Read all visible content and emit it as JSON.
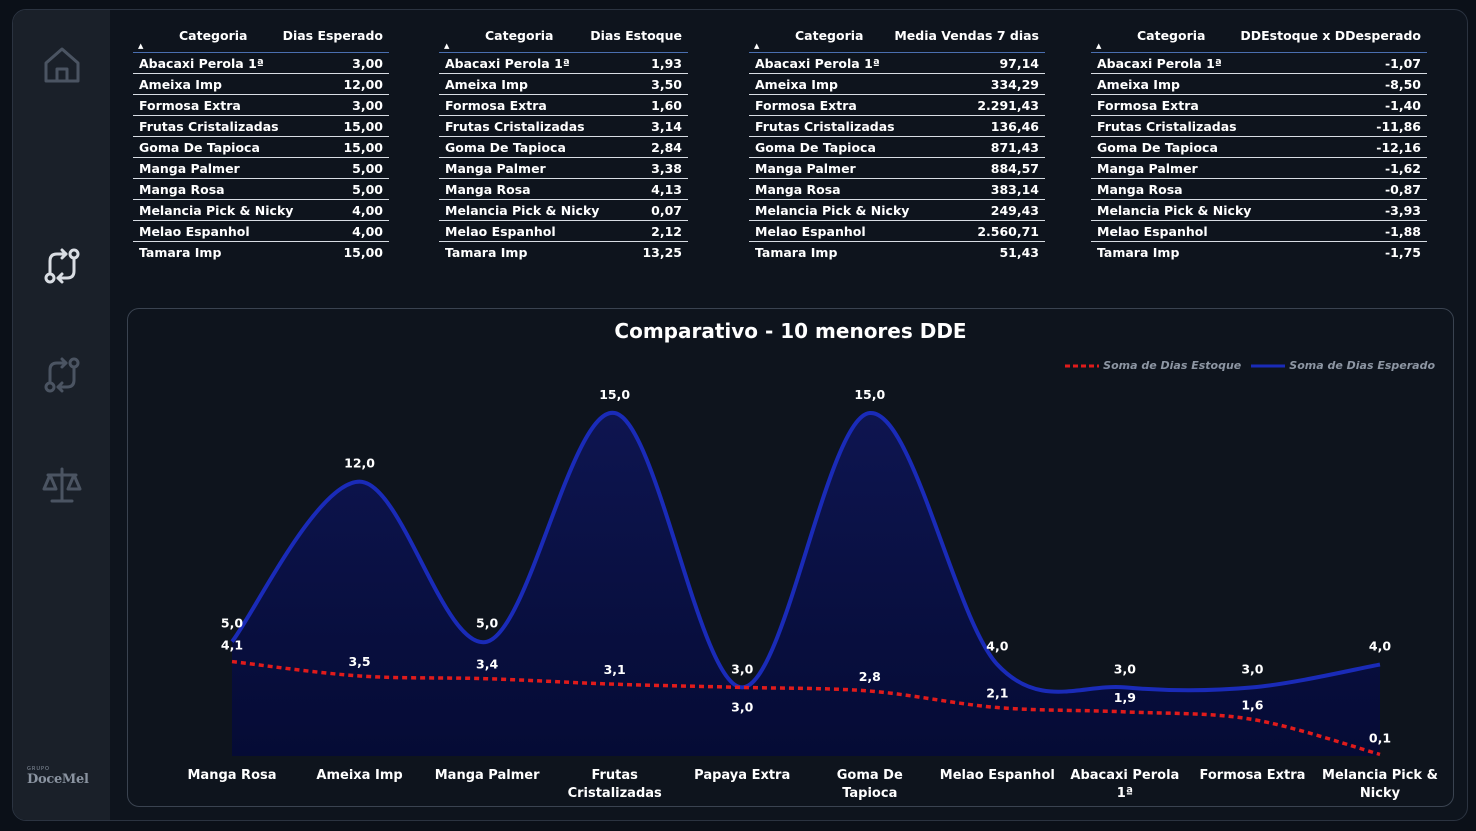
{
  "logo": {
    "group": "GRUPO",
    "name": "DoceMel"
  },
  "nav": [
    {
      "name": "home-icon"
    },
    {
      "name": "compare-icon-active"
    },
    {
      "name": "compare-icon"
    },
    {
      "name": "balance-icon"
    }
  ],
  "tables": [
    {
      "col1": "Categoria",
      "col2": "Dias Esperado",
      "rows": [
        [
          "Abacaxi Perola 1ª",
          "3,00"
        ],
        [
          "Ameixa Imp",
          "12,00"
        ],
        [
          "Formosa Extra",
          "3,00"
        ],
        [
          "Frutas Cristalizadas",
          "15,00"
        ],
        [
          "Goma De Tapioca",
          "15,00"
        ],
        [
          "Manga Palmer",
          "5,00"
        ],
        [
          "Manga Rosa",
          "5,00"
        ],
        [
          "Melancia Pick & Nicky",
          "4,00"
        ],
        [
          "Melao Espanhol",
          "4,00"
        ],
        [
          "Tamara Imp",
          "15,00"
        ]
      ]
    },
    {
      "col1": "Categoria",
      "col2": "Dias Estoque",
      "rows": [
        [
          "Abacaxi Perola 1ª",
          "1,93"
        ],
        [
          "Ameixa Imp",
          "3,50"
        ],
        [
          "Formosa Extra",
          "1,60"
        ],
        [
          "Frutas Cristalizadas",
          "3,14"
        ],
        [
          "Goma De Tapioca",
          "2,84"
        ],
        [
          "Manga Palmer",
          "3,38"
        ],
        [
          "Manga Rosa",
          "4,13"
        ],
        [
          "Melancia Pick & Nicky",
          "0,07"
        ],
        [
          "Melao Espanhol",
          "2,12"
        ],
        [
          "Tamara Imp",
          "13,25"
        ]
      ]
    },
    {
      "col1": "Categoria",
      "col2": "Media Vendas 7 dias",
      "rows": [
        [
          "Abacaxi Perola 1ª",
          "97,14"
        ],
        [
          "Ameixa Imp",
          "334,29"
        ],
        [
          "Formosa Extra",
          "2.291,43"
        ],
        [
          "Frutas Cristalizadas",
          "136,46"
        ],
        [
          "Goma De Tapioca",
          "871,43"
        ],
        [
          "Manga Palmer",
          "884,57"
        ],
        [
          "Manga Rosa",
          "383,14"
        ],
        [
          "Melancia Pick & Nicky",
          "249,43"
        ],
        [
          "Melao Espanhol",
          "2.560,71"
        ],
        [
          "Tamara Imp",
          "51,43"
        ]
      ]
    },
    {
      "col1": "Categoria",
      "col2": "DDEstoque x DDesperado",
      "rows": [
        [
          "Abacaxi Perola 1ª",
          "-1,07"
        ],
        [
          "Ameixa Imp",
          "-8,50"
        ],
        [
          "Formosa Extra",
          "-1,40"
        ],
        [
          "Frutas Cristalizadas",
          "-11,86"
        ],
        [
          "Goma De Tapioca",
          "-12,16"
        ],
        [
          "Manga Palmer",
          "-1,62"
        ],
        [
          "Manga Rosa",
          "-0,87"
        ],
        [
          "Melancia Pick & Nicky",
          "-3,93"
        ],
        [
          "Melao Espanhol",
          "-1,88"
        ],
        [
          "Tamara Imp",
          "-1,75"
        ]
      ]
    }
  ],
  "chart_data": {
    "type": "line",
    "title": "Comparativo - 10 menores DDE",
    "categories": [
      [
        "Manga Rosa"
      ],
      [
        "Ameixa Imp"
      ],
      [
        "Manga Palmer"
      ],
      [
        "Frutas",
        "Cristalizadas"
      ],
      [
        "Papaya Extra"
      ],
      [
        "Goma De",
        "Tapioca"
      ],
      [
        "Melao Espanhol"
      ],
      [
        "Abacaxi Perola",
        "1ª"
      ],
      [
        "Formosa Extra"
      ],
      [
        "Melancia Pick &",
        "Nicky"
      ]
    ],
    "series": [
      {
        "name": "Soma de Dias Estoque",
        "color": "#e01b1b",
        "style": "dotted",
        "values": [
          4.13,
          3.5,
          3.38,
          3.14,
          3.0,
          2.84,
          2.12,
          1.93,
          1.6,
          0.07
        ],
        "labels": [
          "4,1",
          "3,5",
          "3,4",
          "3,1",
          "3,0",
          "2,8",
          "2,1",
          "1,9",
          "1,6",
          "0,1"
        ]
      },
      {
        "name": "Soma de Dias Esperado",
        "color": "#1a2bb8",
        "style": "solid-area",
        "values": [
          5,
          12,
          5,
          15,
          3,
          15,
          4,
          3,
          3,
          4
        ],
        "labels": [
          "5,0",
          "12,0",
          "5,0",
          "15,0",
          "3,0",
          "15,0",
          "4,0",
          "3,0",
          "3,0",
          "4,0"
        ]
      }
    ],
    "ylim": [
      0,
      15
    ],
    "legend": "top-right"
  }
}
